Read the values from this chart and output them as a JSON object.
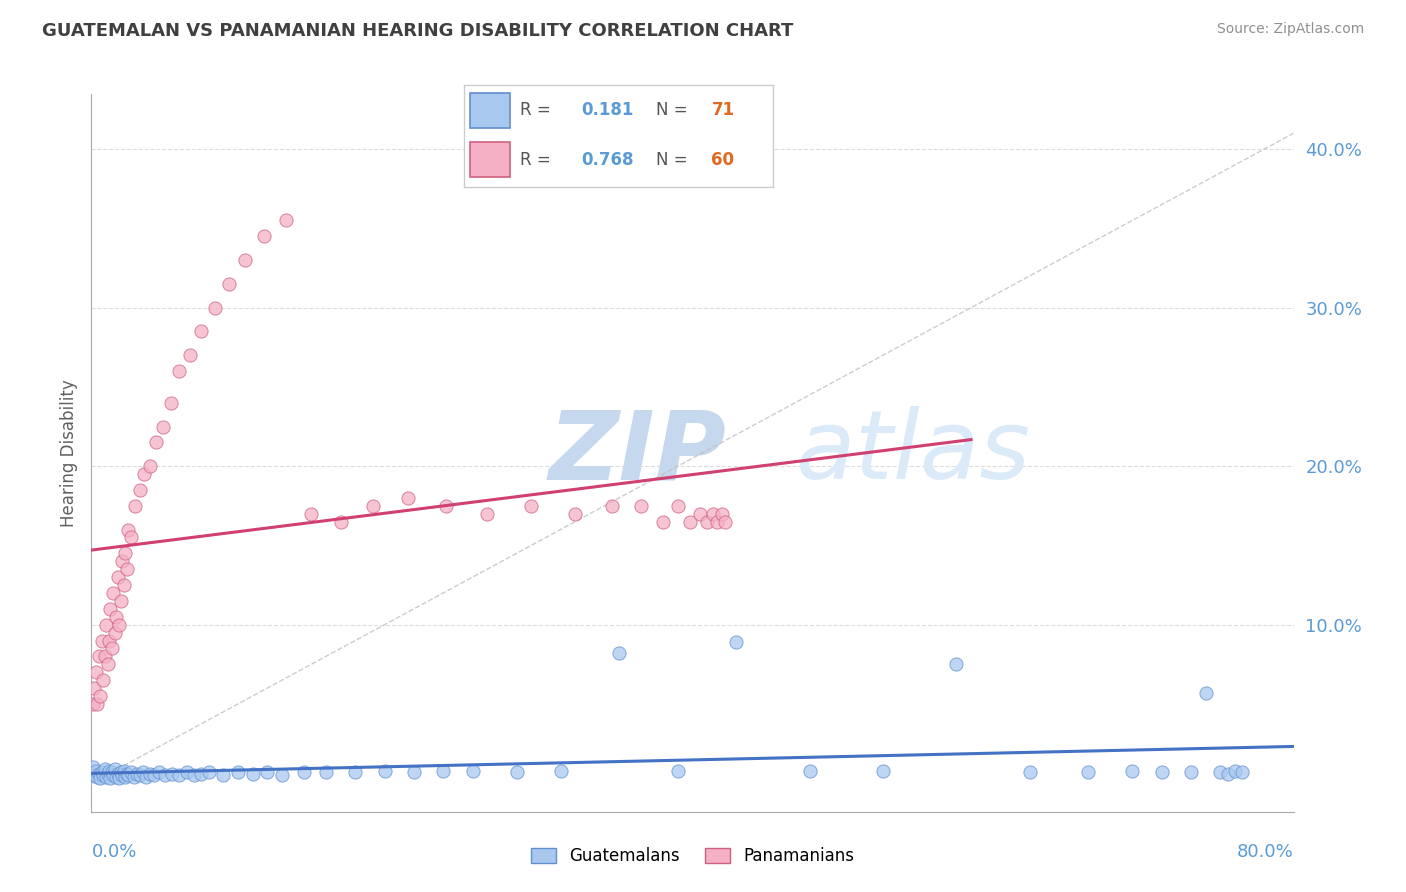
{
  "title": "GUATEMALAN VS PANAMANIAN HEARING DISABILITY CORRELATION CHART",
  "source": "Source: ZipAtlas.com",
  "ylabel": "Hearing Disability",
  "xlim": [
    0.0,
    0.82
  ],
  "ylim": [
    -0.018,
    0.435
  ],
  "yticks": [
    0.0,
    0.1,
    0.2,
    0.3,
    0.4
  ],
  "ytick_labels": [
    "",
    "10.0%",
    "20.0%",
    "30.0%",
    "40.0%"
  ],
  "xtick_left": "0.0%",
  "xtick_right": "80.0%",
  "r_guatemalan": 0.181,
  "n_guatemalan": 71,
  "r_panamanian": 0.768,
  "n_panamanian": 60,
  "color_guatemalan_fill": "#a8c8f0",
  "color_guatemalan_edge": "#6090d0",
  "color_panamanian_fill": "#f5b0c5",
  "color_panamanian_edge": "#d06080",
  "color_trend_guatemalan": "#4472c4",
  "color_trend_panamanian": "#d04070",
  "color_ref_line": "#c0c0c0",
  "color_axis_tick": "#5b9bd5",
  "color_title": "#404040",
  "color_source": "#909090",
  "watermark_color": "#daeaf8",
  "guatemalan_x": [
    0.001,
    0.002,
    0.003,
    0.004,
    0.005,
    0.006,
    0.007,
    0.008,
    0.009,
    0.01,
    0.011,
    0.012,
    0.013,
    0.014,
    0.015,
    0.016,
    0.017,
    0.018,
    0.019,
    0.02,
    0.021,
    0.022,
    0.023,
    0.024,
    0.025,
    0.027,
    0.029,
    0.031,
    0.033,
    0.035,
    0.037,
    0.04,
    0.043,
    0.046,
    0.05,
    0.055,
    0.06,
    0.065,
    0.07,
    0.075,
    0.08,
    0.09,
    0.1,
    0.11,
    0.12,
    0.13,
    0.145,
    0.16,
    0.18,
    0.2,
    0.22,
    0.24,
    0.26,
    0.29,
    0.32,
    0.36,
    0.4,
    0.44,
    0.49,
    0.54,
    0.59,
    0.64,
    0.68,
    0.71,
    0.73,
    0.75,
    0.76,
    0.77,
    0.775,
    0.78,
    0.785
  ],
  "guatemalan_y": [
    0.01,
    0.005,
    0.008,
    0.004,
    0.006,
    0.003,
    0.007,
    0.005,
    0.009,
    0.004,
    0.006,
    0.008,
    0.003,
    0.007,
    0.005,
    0.009,
    0.004,
    0.006,
    0.003,
    0.007,
    0.005,
    0.008,
    0.004,
    0.006,
    0.005,
    0.007,
    0.004,
    0.006,
    0.005,
    0.007,
    0.004,
    0.006,
    0.005,
    0.007,
    0.005,
    0.006,
    0.005,
    0.007,
    0.005,
    0.006,
    0.007,
    0.005,
    0.007,
    0.006,
    0.007,
    0.005,
    0.007,
    0.007,
    0.007,
    0.008,
    0.007,
    0.008,
    0.008,
    0.007,
    0.008,
    0.082,
    0.008,
    0.089,
    0.008,
    0.008,
    0.075,
    0.007,
    0.007,
    0.008,
    0.007,
    0.007,
    0.057,
    0.007,
    0.006,
    0.008,
    0.007
  ],
  "panamanian_x": [
    0.001,
    0.002,
    0.003,
    0.004,
    0.005,
    0.006,
    0.007,
    0.008,
    0.009,
    0.01,
    0.011,
    0.012,
    0.013,
    0.014,
    0.015,
    0.016,
    0.017,
    0.018,
    0.019,
    0.02,
    0.021,
    0.022,
    0.023,
    0.024,
    0.025,
    0.027,
    0.03,
    0.033,
    0.036,
    0.04,
    0.044,
    0.049,
    0.054,
    0.06,
    0.067,
    0.075,
    0.084,
    0.094,
    0.105,
    0.118,
    0.133,
    0.15,
    0.17,
    0.192,
    0.216,
    0.242,
    0.27,
    0.3,
    0.33,
    0.355,
    0.375,
    0.39,
    0.4,
    0.408,
    0.415,
    0.42,
    0.424,
    0.427,
    0.43,
    0.432
  ],
  "panamanian_y": [
    0.05,
    0.06,
    0.07,
    0.05,
    0.08,
    0.055,
    0.09,
    0.065,
    0.08,
    0.1,
    0.075,
    0.09,
    0.11,
    0.085,
    0.12,
    0.095,
    0.105,
    0.13,
    0.1,
    0.115,
    0.14,
    0.125,
    0.145,
    0.135,
    0.16,
    0.155,
    0.175,
    0.185,
    0.195,
    0.2,
    0.215,
    0.225,
    0.24,
    0.26,
    0.27,
    0.285,
    0.3,
    0.315,
    0.33,
    0.345,
    0.355,
    0.17,
    0.165,
    0.175,
    0.18,
    0.175,
    0.17,
    0.175,
    0.17,
    0.175,
    0.175,
    0.165,
    0.175,
    0.165,
    0.17,
    0.165,
    0.17,
    0.165,
    0.17,
    0.165
  ]
}
